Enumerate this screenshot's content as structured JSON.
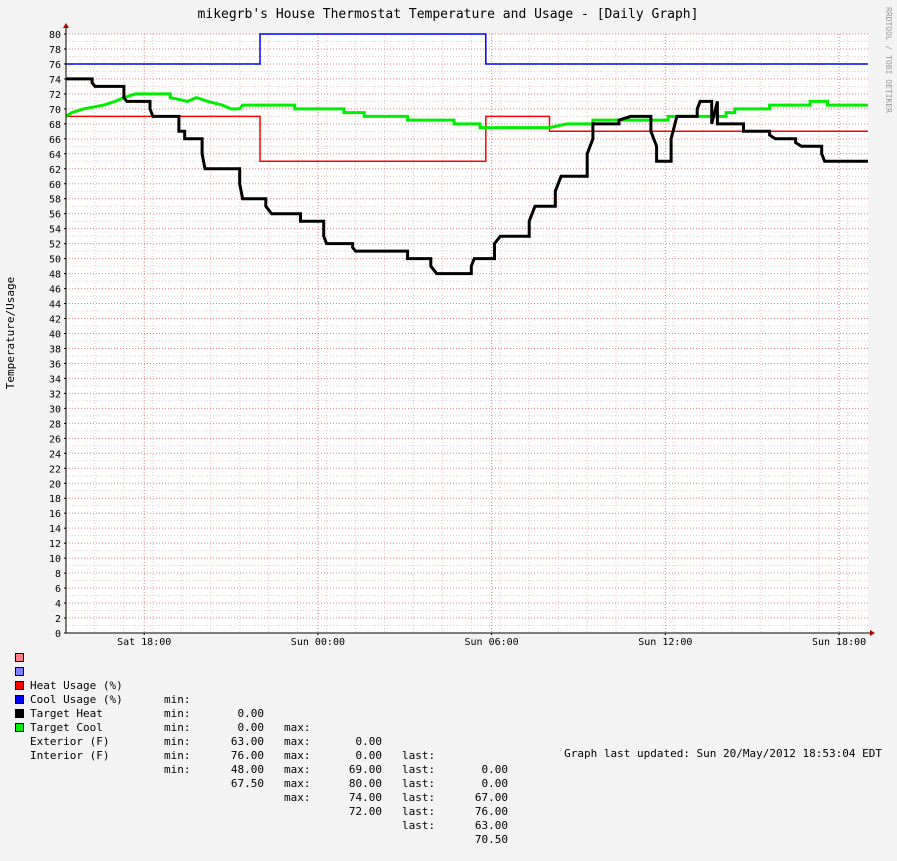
{
  "chart_data": {
    "type": "line",
    "title": "mikegrb's House Thermostat Temperature and Usage - [Daily Graph]",
    "ylabel": "Temperature/Usage",
    "watermark": "RRDTOOL / TOBI OETIKER",
    "ylim": [
      0,
      80
    ],
    "yticks": [
      "0",
      "2",
      "4",
      "6",
      "8",
      "10",
      "12",
      "14",
      "16",
      "18",
      "20",
      "22",
      "24",
      "26",
      "28",
      "30",
      "32",
      "34",
      "36",
      "38",
      "40",
      "42",
      "44",
      "46",
      "48",
      "50",
      "52",
      "54",
      "56",
      "58",
      "60",
      "62",
      "64",
      "66",
      "68",
      "70",
      "72",
      "74",
      "76",
      "78",
      "80"
    ],
    "x_axis_unit": "hours since Sat 15:00",
    "xlim": [
      0,
      27.7
    ],
    "xticks": [
      {
        "x": 2.7,
        "label": "Sat 18:00"
      },
      {
        "x": 8.7,
        "label": "Sun 00:00"
      },
      {
        "x": 14.7,
        "label": "Sun 06:00"
      },
      {
        "x": 20.7,
        "label": "Sun 12:00"
      },
      {
        "x": 26.7,
        "label": "Sun 18:00"
      }
    ],
    "grid": true,
    "colors": {
      "heat_usage": "#ff8080",
      "cool_usage": "#8080ff",
      "target_heat": "#ff0000",
      "target_cool": "#0000ff",
      "exterior": "#000000",
      "interior": "#00ee00"
    },
    "series": [
      {
        "name": "Target Cool",
        "color": "#0000ff",
        "width": 1.5,
        "points": [
          [
            0,
            76
          ],
          [
            6.7,
            76
          ],
          [
            6.7,
            80
          ],
          [
            14.5,
            80
          ],
          [
            14.5,
            76
          ],
          [
            27.7,
            76
          ]
        ]
      },
      {
        "name": "Target Heat",
        "color": "#ff0000",
        "width": 1.5,
        "points": [
          [
            0,
            69
          ],
          [
            6.7,
            69
          ],
          [
            6.7,
            63
          ],
          [
            14.5,
            63
          ],
          [
            14.5,
            69
          ],
          [
            16.7,
            69
          ],
          [
            16.7,
            67
          ],
          [
            27.7,
            67
          ]
        ]
      },
      {
        "name": "Interior (F)",
        "color": "#00ee00",
        "width": 3,
        "points": [
          [
            0,
            69
          ],
          [
            0.2,
            69.5
          ],
          [
            0.6,
            70
          ],
          [
            1.3,
            70.5
          ],
          [
            1.7,
            71
          ],
          [
            2.0,
            71.5
          ],
          [
            2.4,
            72
          ],
          [
            3.6,
            72
          ],
          [
            3.6,
            71.5
          ],
          [
            4.2,
            71
          ],
          [
            4.5,
            71.5
          ],
          [
            4.9,
            71
          ],
          [
            5.4,
            70.5
          ],
          [
            5.7,
            70
          ],
          [
            6.0,
            70
          ],
          [
            6.1,
            70.5
          ],
          [
            7.9,
            70.5
          ],
          [
            7.9,
            70
          ],
          [
            9.6,
            70
          ],
          [
            9.6,
            69.5
          ],
          [
            10.3,
            69.5
          ],
          [
            10.3,
            69
          ],
          [
            11.8,
            69
          ],
          [
            11.8,
            68.5
          ],
          [
            13.4,
            68.5
          ],
          [
            13.4,
            68
          ],
          [
            14.3,
            68
          ],
          [
            14.3,
            67.5
          ],
          [
            16.0,
            67.5
          ],
          [
            16.7,
            67.5
          ],
          [
            17.3,
            68
          ],
          [
            18.2,
            68
          ],
          [
            18.2,
            68.5
          ],
          [
            19.2,
            68.5
          ],
          [
            20.8,
            68.5
          ],
          [
            20.8,
            69
          ],
          [
            22.8,
            69
          ],
          [
            22.8,
            69.5
          ],
          [
            23.1,
            69.5
          ],
          [
            23.1,
            70
          ],
          [
            24.3,
            70
          ],
          [
            24.3,
            70.5
          ],
          [
            25.7,
            70.5
          ],
          [
            25.7,
            71
          ],
          [
            26.3,
            71
          ],
          [
            26.3,
            70.5
          ],
          [
            27.7,
            70.5
          ]
        ]
      },
      {
        "name": "Exterior (F)",
        "color": "#000000",
        "width": 3,
        "points": [
          [
            0,
            74
          ],
          [
            0.9,
            74
          ],
          [
            0.9,
            73.5
          ],
          [
            1.0,
            73
          ],
          [
            2.0,
            73
          ],
          [
            2.0,
            71.5
          ],
          [
            2.1,
            71
          ],
          [
            2.9,
            71
          ],
          [
            2.9,
            70
          ],
          [
            3.0,
            69
          ],
          [
            3.9,
            69
          ],
          [
            3.9,
            67
          ],
          [
            4.1,
            67
          ],
          [
            4.1,
            66
          ],
          [
            4.7,
            66
          ],
          [
            4.7,
            64
          ],
          [
            4.8,
            62
          ],
          [
            6.0,
            62
          ],
          [
            6.0,
            60
          ],
          [
            6.1,
            58
          ],
          [
            6.9,
            58
          ],
          [
            6.9,
            57
          ],
          [
            7.1,
            56
          ],
          [
            8.1,
            56
          ],
          [
            8.1,
            55
          ],
          [
            8.9,
            55
          ],
          [
            8.9,
            53
          ],
          [
            9.0,
            52
          ],
          [
            9.9,
            52
          ],
          [
            9.9,
            51.5
          ],
          [
            10.0,
            51
          ],
          [
            11.8,
            51
          ],
          [
            11.8,
            50
          ],
          [
            12.6,
            50
          ],
          [
            12.6,
            49
          ],
          [
            12.8,
            48
          ],
          [
            14.0,
            48
          ],
          [
            14.0,
            49
          ],
          [
            14.1,
            50
          ],
          [
            14.8,
            50
          ],
          [
            14.8,
            52
          ],
          [
            15.0,
            53
          ],
          [
            16.0,
            53
          ],
          [
            16.0,
            55
          ],
          [
            16.2,
            57
          ],
          [
            16.9,
            57
          ],
          [
            16.9,
            59
          ],
          [
            17.1,
            61
          ],
          [
            18.0,
            61
          ],
          [
            18.0,
            64
          ],
          [
            18.2,
            66
          ],
          [
            18.2,
            68
          ],
          [
            19.1,
            68
          ],
          [
            19.1,
            68.5
          ],
          [
            19.5,
            69
          ],
          [
            20.2,
            69
          ],
          [
            20.2,
            67
          ],
          [
            20.4,
            65
          ],
          [
            20.4,
            63
          ],
          [
            20.9,
            63
          ],
          [
            20.9,
            66
          ],
          [
            21.1,
            69
          ],
          [
            21.8,
            69
          ],
          [
            21.8,
            70
          ],
          [
            21.9,
            71
          ],
          [
            22.3,
            71
          ],
          [
            22.3,
            68
          ],
          [
            22.5,
            71
          ],
          [
            22.5,
            68
          ],
          [
            23.4,
            68
          ],
          [
            23.4,
            67
          ],
          [
            24.3,
            67
          ],
          [
            24.3,
            66.5
          ],
          [
            24.5,
            66
          ],
          [
            25.2,
            66
          ],
          [
            25.2,
            65.5
          ],
          [
            25.4,
            65
          ],
          [
            26.1,
            65
          ],
          [
            26.1,
            64
          ],
          [
            26.2,
            63
          ],
          [
            27.7,
            63
          ]
        ]
      }
    ]
  },
  "legend": {
    "headers": {
      "min": "min:",
      "max": "max:",
      "last": "last:"
    },
    "rows": [
      {
        "swatch": "#ff8080",
        "name": "Heat Usage (%)",
        "min": "0.00",
        "max": "0.00",
        "last": "0.00"
      },
      {
        "swatch": "#8080ff",
        "name": "Cool Usage (%)",
        "min": "0.00",
        "max": "0.00",
        "last": "0.00"
      },
      {
        "swatch": "#ff0000",
        "name": "Target Heat",
        "min": "63.00",
        "max": "69.00",
        "last": "67.00"
      },
      {
        "swatch": "#0000ff",
        "name": "Target Cool",
        "min": "76.00",
        "max": "80.00",
        "last": "76.00"
      },
      {
        "swatch": "#000000",
        "name": "Exterior (F)",
        "min": "48.00",
        "max": "74.00",
        "last": "63.00"
      },
      {
        "swatch": "#00ee00",
        "name": "Interior (F)",
        "min": "67.50",
        "max": "72.00",
        "last": "70.50"
      }
    ]
  },
  "footer": "Graph last updated: Sun 20/May/2012 18:53:04 EDT"
}
